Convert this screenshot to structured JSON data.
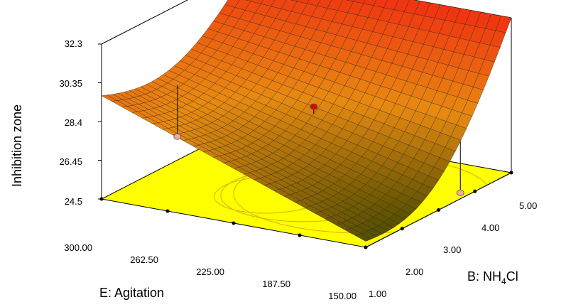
{
  "chart_data": {
    "type": "surface",
    "zlabel": "Inhibition zone",
    "xlabel": "E: Agitation",
    "ylabel_prefix": "B: NH",
    "ylabel_sub": "4",
    "ylabel_suffix": "Cl",
    "z_ticks": [
      "24.5",
      "26.45",
      "28.4",
      "30.35",
      "32.3"
    ],
    "z_tick_values": [
      24.5,
      26.45,
      28.4,
      30.35,
      32.3
    ],
    "x_ticks": [
      "300.00",
      "262.50",
      "225.00",
      "187.50",
      "150.00"
    ],
    "x_tick_values": [
      300,
      262.5,
      225,
      187.5,
      150
    ],
    "y_ticks": [
      "1.00",
      "2.00",
      "3.00",
      "4.00",
      "5.00"
    ],
    "y_tick_values": [
      1,
      2,
      3,
      4,
      5
    ],
    "zlim": [
      24.5,
      32.3
    ],
    "xlim": [
      150,
      300
    ],
    "ylim": [
      1,
      5
    ],
    "surface_corners": {
      "agitation_300_nh4cl_1": 29.7,
      "agitation_150_nh4cl_1": 24.8,
      "agitation_300_nh4cl_5": 32.3,
      "agitation_150_nh4cl_5": 32.3
    },
    "design_points": [
      {
        "agitation": 225,
        "nh4cl": 3.2,
        "response": 28.3,
        "above_surface": true
      },
      {
        "agitation": 290,
        "nh4cl": 2.6,
        "response": 26.3,
        "above_surface": false
      },
      {
        "agitation": 150,
        "nh4cl": 3.6,
        "response": 24.8,
        "above_surface": false
      }
    ],
    "colors": {
      "surface_low": "#4a4a00",
      "surface_mid": "#e88a10",
      "surface_high": "#f03010",
      "floor": "#ffff00",
      "point_high": "#e00000",
      "point_low": "#f3a8a8"
    },
    "grid": false
  }
}
